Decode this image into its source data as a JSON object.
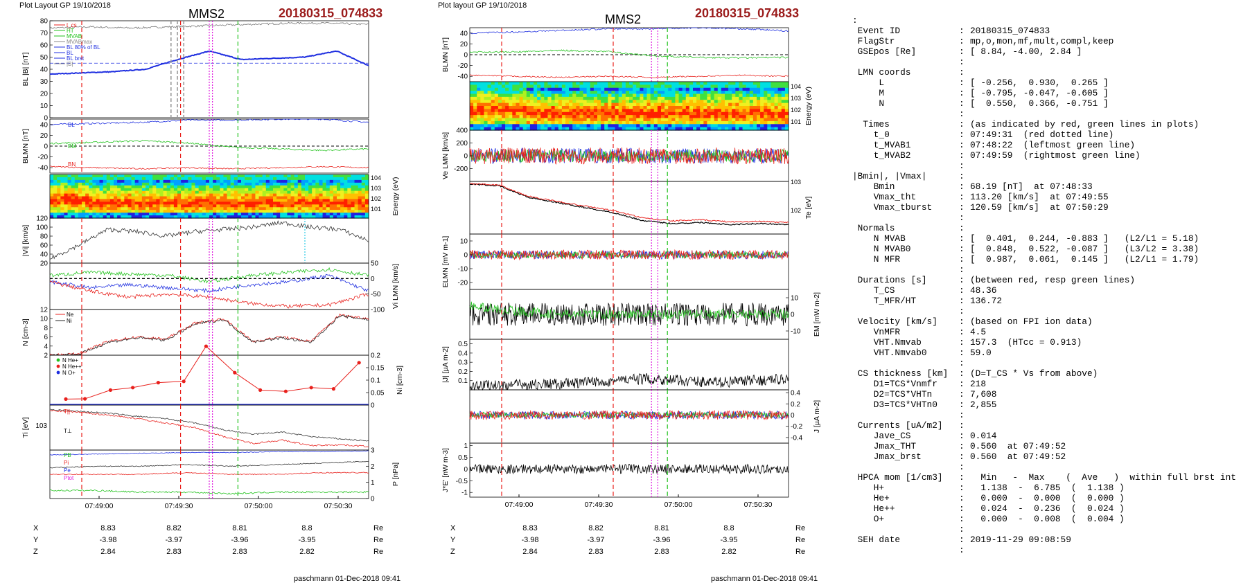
{
  "left": {
    "header": "Plot Layout GP 19/10/2018",
    "spacecraft": "MMS2",
    "event_id": "20180315_074833",
    "footer": "paschmann 01-Dec-2018 09:41",
    "xticks": [
      "07:49:00",
      "07:49:30",
      "07:50:00",
      "07:50:30"
    ],
    "pos_rows": [
      {
        "label": "X",
        "values": [
          "8.83",
          "8.82",
          "8.81",
          "8.8"
        ],
        "unit": "Re"
      },
      {
        "label": "Y",
        "values": [
          "-3.98",
          "-3.97",
          "-3.96",
          "-3.95"
        ],
        "unit": "Re"
      },
      {
        "label": "Z",
        "values": [
          "2.84",
          "2.83",
          "2.83",
          "2.82"
        ],
        "unit": "Re"
      }
    ]
  },
  "middle": {
    "header": "Plot layout GP 19/10/2018",
    "spacecraft": "MMS2",
    "event_id": "20180315_074833",
    "footer": "paschmann 01-Dec-2018 09:41",
    "xticks": [
      "07:49:00",
      "07:49:30",
      "07:50:00",
      "07:50:30"
    ],
    "pos_rows": [
      {
        "label": "X",
        "values": [
          "8.83",
          "8.82",
          "8.81",
          "8.8"
        ],
        "unit": "Re"
      },
      {
        "label": "Y",
        "values": [
          "-3.98",
          "-3.97",
          "-3.96",
          "-3.95"
        ],
        "unit": "Re"
      },
      {
        "label": "Z",
        "values": [
          "2.84",
          "2.83",
          "2.83",
          "2.82"
        ],
        "unit": "Re"
      }
    ]
  },
  "info_lines": [
    {
      "lab": ":",
      "sep": "",
      "val": ""
    },
    {
      "lab": " Event ID",
      "sep": ":",
      "val": "20180315_074833"
    },
    {
      "lab": " FlagStr",
      "sep": ":",
      "val": "mp,o,mon,mf,mult,compl,keep"
    },
    {
      "lab": " GSEpos [Re]",
      "sep": ":",
      "val": "[ 8.84, -4.00, 2.84 ]"
    },
    {
      "lab": "",
      "sep": ":",
      "val": ""
    },
    {
      "lab": " LMN coords",
      "sep": ":",
      "val": ""
    },
    {
      "lab": "     L",
      "sep": ":",
      "val": "[ -0.256,  0.930,  0.265 ]"
    },
    {
      "lab": "     M",
      "sep": ":",
      "val": "[ -0.795, -0.047, -0.605 ]"
    },
    {
      "lab": "     N",
      "sep": ":",
      "val": "[  0.550,  0.366, -0.751 ]"
    },
    {
      "lab": "",
      "sep": ":",
      "val": ""
    },
    {
      "lab": "  Times",
      "sep": ":",
      "val": "(as indicated by red, green lines in plots)"
    },
    {
      "lab": "    t_0",
      "sep": ":",
      "val": "07:49:31  (red dotted line)"
    },
    {
      "lab": "    t_MVAB1",
      "sep": ":",
      "val": "07:48:22  (leftmost green line)"
    },
    {
      "lab": "    t_MVAB2",
      "sep": ":",
      "val": "07:49:59  (rightmost green line)"
    },
    {
      "lab": "",
      "sep": ":",
      "val": ""
    },
    {
      "lab": "|Bmin|, |Vmax|",
      "sep": ":",
      "val": ""
    },
    {
      "lab": "    Bmin",
      "sep": ":",
      "val": "68.19 [nT]  at 07:48:33"
    },
    {
      "lab": "    Vmax_tht",
      "sep": ":",
      "val": "113.20 [km/s]  at 07:49:55"
    },
    {
      "lab": "    Vmax_tburst",
      "sep": ":",
      "val": "120.59 [km/s]  at 07:50:29"
    },
    {
      "lab": "",
      "sep": ":",
      "val": ""
    },
    {
      "lab": " Normals",
      "sep": ":",
      "val": ""
    },
    {
      "lab": "    N MVAB",
      "sep": ":",
      "val": "[  0.401,  0.244, -0.883 ]   (L2/L1 = 5.18)"
    },
    {
      "lab": "    N MVAB0",
      "sep": ":",
      "val": "[  0.848,  0.522, -0.087 ]   (L3/L2 = 3.38)"
    },
    {
      "lab": "    N MFR",
      "sep": ":",
      "val": "[  0.987,  0.061,  0.145 ]   (L2/L1 = 1.79)"
    },
    {
      "lab": "",
      "sep": ":",
      "val": ""
    },
    {
      "lab": " Durations [s]",
      "sep": ":",
      "val": "(between red, resp green lines)"
    },
    {
      "lab": "    T_CS",
      "sep": ":",
      "val": "48.36"
    },
    {
      "lab": "    T_MFR/HT",
      "sep": ":",
      "val": "136.72"
    },
    {
      "lab": "",
      "sep": ":",
      "val": ""
    },
    {
      "lab": " Velocity [km/s]",
      "sep": ":",
      "val": "(based on FPI ion data)"
    },
    {
      "lab": "    VnMFR",
      "sep": ":",
      "val": "4.5"
    },
    {
      "lab": "    VHT.Nmvab",
      "sep": ":",
      "val": "157.3  (HTcc = 0.913)"
    },
    {
      "lab": "    VHT.Nmvab0",
      "sep": ":",
      "val": "59.0"
    },
    {
      "lab": "",
      "sep": ":",
      "val": ""
    },
    {
      "lab": " CS thickness [km]",
      "sep": ":",
      "val": "(D=T_CS * Vs from above)"
    },
    {
      "lab": "    D1=TCS*Vnmfr",
      "sep": ":",
      "val": "218"
    },
    {
      "lab": "    D2=TCS*VHTn",
      "sep": ":",
      "val": "7,608"
    },
    {
      "lab": "    D3=TCS*VHTn0",
      "sep": ":",
      "val": "2,855"
    },
    {
      "lab": "",
      "sep": ":",
      "val": ""
    },
    {
      "lab": " Currents [uA/m2]",
      "sep": ":",
      "val": ""
    },
    {
      "lab": "    Jave_CS",
      "sep": ":",
      "val": "0.014"
    },
    {
      "lab": "    Jmax_THT",
      "sep": ":",
      "val": "0.560  at 07:49:52"
    },
    {
      "lab": "    Jmax_brst",
      "sep": ":",
      "val": "0.560  at 07:49:52"
    },
    {
      "lab": "",
      "sep": ":",
      "val": ""
    },
    {
      "lab": " HPCA mom [1/cm3]",
      "sep": ":",
      "val": "  Min   -  Max    (  Ave   )  within full brst int"
    },
    {
      "lab": "    H+",
      "sep": ":",
      "val": "  1.138  -  6.785  (  1.138 )"
    },
    {
      "lab": "    He+",
      "sep": ":",
      "val": "  0.000  -  0.000  (  0.000 )"
    },
    {
      "lab": "    He++",
      "sep": ":",
      "val": "  0.024  -  0.236  (  0.024 )"
    },
    {
      "lab": "    O+",
      "sep": ":",
      "val": "  0.000  -  0.008  (  0.004 )"
    },
    {
      "lab": "",
      "sep": ":",
      "val": ""
    },
    {
      "lab": " SEH date",
      "sep": ":",
      "val": "2019-11-29 09:08:59"
    },
    {
      "lab": "",
      "sep": ":",
      "val": ""
    }
  ],
  "colors": {
    "red": "#e8201c",
    "green": "#22c21d",
    "blue": "#1f2fe0",
    "black": "#000000",
    "magenta": "#e020e0",
    "darkred": "#9b1b1b"
  },
  "chart_data": [
    {
      "type": "line",
      "panel": "left-1",
      "ylabel": "B_L |B| [nT]",
      "ylim": [
        0,
        80
      ],
      "yticks": [
        0,
        10,
        20,
        30,
        40,
        50,
        60,
        70,
        80
      ],
      "legend": [
        "t_cs",
        "HT",
        "MVAB",
        "MVABmax",
        "BL 80% of BL",
        "BL",
        "BL brst",
        "|B|"
      ],
      "series": [
        {
          "name": "|B|",
          "x": [
            "07:48:40",
            "07:49:00",
            "07:49:20",
            "07:49:30",
            "07:49:40",
            "07:50:00",
            "07:50:20",
            "07:50:40",
            "07:50:55"
          ],
          "values": [
            74,
            75,
            75,
            76,
            76,
            77,
            78,
            78,
            77
          ]
        },
        {
          "name": "BL",
          "x": [
            "07:48:40",
            "07:49:00",
            "07:49:20",
            "07:49:30",
            "07:49:40",
            "07:50:00",
            "07:50:20",
            "07:50:40",
            "07:50:55"
          ],
          "values": [
            36,
            38,
            41,
            48,
            55,
            48,
            50,
            55,
            43
          ]
        }
      ]
    },
    {
      "type": "line",
      "panel": "left-2",
      "ylabel": "B_LMN [nT]",
      "ylim": [
        -50,
        50
      ],
      "yticks": [
        -40,
        -20,
        0,
        20,
        40
      ],
      "series": [
        {
          "name": "BL",
          "values": [
            36,
            38,
            41,
            48,
            48,
            50,
            55,
            43
          ]
        },
        {
          "name": "BM",
          "values": [
            5,
            7,
            10,
            6,
            -2,
            -5,
            -8,
            -5
          ]
        },
        {
          "name": "BN",
          "values": [
            -38,
            -40,
            -42,
            -40,
            -42,
            -40,
            -38,
            -40
          ]
        }
      ]
    },
    {
      "type": "heatmap",
      "panel": "left-3",
      "ylabel": "Energy (eV)",
      "yticks": [
        "10^1",
        "10^2",
        "10^3",
        "10^4"
      ]
    },
    {
      "type": "line",
      "panel": "left-4",
      "ylabel": "|V_i| [km/s]",
      "ylim": [
        20,
        120
      ],
      "yticks": [
        20,
        40,
        60,
        80,
        100,
        120
      ],
      "legend": [
        "HT",
        "Vmax",
        "Vi dmax",
        "Vi"
      ],
      "series": [
        {
          "name": "|Vi|",
          "values": [
            30,
            60,
            100,
            85,
            90,
            95,
            100,
            105,
            100,
            70
          ]
        }
      ]
    },
    {
      "type": "line",
      "panel": "left-5",
      "ylabel": "V_i LMN [km/s]",
      "ylim": [
        -100,
        50
      ],
      "yticks": [
        -100,
        -50,
        0,
        50
      ],
      "series": [
        {
          "name": "VL",
          "values": [
            10,
            20,
            15,
            10,
            -10,
            10,
            20,
            30,
            10
          ]
        },
        {
          "name": "VM",
          "values": [
            -10,
            -30,
            -20,
            -30,
            -40,
            -20,
            -10,
            10,
            -40
          ]
        },
        {
          "name": "VN",
          "values": [
            -10,
            -40,
            -60,
            -50,
            -60,
            -80,
            -90,
            -85,
            -50
          ]
        }
      ]
    },
    {
      "type": "line",
      "panel": "left-6",
      "ylabel": "N [cm^-3]",
      "ylim": [
        2,
        12
      ],
      "yticks": [
        2,
        4,
        6,
        8,
        10,
        12
      ],
      "legend": [
        "Ne",
        "Ni"
      ],
      "series": [
        {
          "name": "Ne",
          "values": [
            2,
            2.3,
            5,
            6,
            9,
            10,
            5,
            6,
            5,
            11,
            10
          ]
        },
        {
          "name": "Ni",
          "values": [
            2,
            2.2,
            4.8,
            5.8,
            8.8,
            9.8,
            4.9,
            5.8,
            4.8,
            10.8,
            9.8
          ]
        }
      ]
    },
    {
      "type": "line",
      "panel": "left-7",
      "ylabel": "N_i [cm^-3]",
      "ylim": [
        0,
        0.2
      ],
      "yticks": [
        0,
        0.05,
        0.1,
        0.15,
        0.2
      ],
      "legend": [
        "N He+",
        "N He++",
        "N O+"
      ],
      "series": [
        {
          "name": "N He++",
          "values": [
            0.024,
            0.025,
            0.06,
            0.07,
            0.09,
            0.095,
            0.236,
            0.13,
            0.06,
            0.055,
            0.07,
            0.065,
            0.17
          ]
        },
        {
          "name": "N O+",
          "values": [
            0.004,
            0.004,
            0.004,
            0.004,
            0.004,
            0.004,
            0.004,
            0.004,
            0.004,
            0.004,
            0.004,
            0.004,
            0.004
          ]
        }
      ]
    },
    {
      "type": "line",
      "panel": "left-8",
      "ylabel": "T_i [eV]",
      "yticks": [
        "10^3"
      ],
      "legend": [
        "T||",
        "T⊥"
      ]
    },
    {
      "type": "line",
      "panel": "left-9",
      "ylabel": "P [nPa]",
      "ylim": [
        0,
        3
      ],
      "yticks": [
        0,
        1,
        2,
        3
      ],
      "legend": [
        "P_B",
        "P_i",
        "P_e",
        "P_tot"
      ]
    },
    {
      "type": "line",
      "panel": "mid-1",
      "ylabel": "B_LMN [nT]",
      "ylim": [
        -50,
        50
      ],
      "yticks": [
        -40,
        -20,
        0,
        20,
        40
      ]
    },
    {
      "type": "heatmap",
      "panel": "mid-2",
      "ylabel": "Energy (eV)",
      "yticks": [
        "10^1",
        "10^2",
        "10^3",
        "10^4"
      ]
    },
    {
      "type": "line",
      "panel": "mid-3",
      "ylabel": "V_e LMN [km/s]",
      "ylim": [
        -400,
        400
      ],
      "yticks": [
        -200,
        0,
        200,
        400
      ]
    },
    {
      "type": "line",
      "panel": "mid-4",
      "ylabel": "T_e [eV]",
      "yticks": [
        "10^2",
        "10^3"
      ]
    },
    {
      "type": "line",
      "panel": "mid-5",
      "ylabel": "E_LMN [mV m^-1]",
      "ylim": [
        -25,
        15
      ],
      "yticks": [
        -20,
        -10,
        0,
        10
      ]
    },
    {
      "type": "line",
      "panel": "mid-6",
      "ylabel": "E_M [mV m^-2]",
      "ylim": [
        -15,
        15
      ],
      "yticks": [
        -10,
        0,
        10
      ]
    },
    {
      "type": "line",
      "panel": "mid-7",
      "ylabel": "|J| [µA m^-2]",
      "ylim": [
        0,
        0.55
      ],
      "yticks": [
        0.1,
        0.2,
        0.3,
        0.4,
        0.5
      ]
    },
    {
      "type": "line",
      "panel": "mid-8",
      "ylabel": "J [µA m^-2]",
      "ylim": [
        -0.5,
        0.45
      ],
      "yticks": [
        -0.4,
        -0.2,
        0.0,
        0.2,
        0.4
      ]
    },
    {
      "type": "line",
      "panel": "mid-9",
      "ylabel": "J*E' [nW m^-3]",
      "ylim": [
        -1.2,
        1.1
      ],
      "yticks": [
        -1.0,
        -0.5,
        0.0,
        0.5,
        1.0
      ]
    }
  ]
}
